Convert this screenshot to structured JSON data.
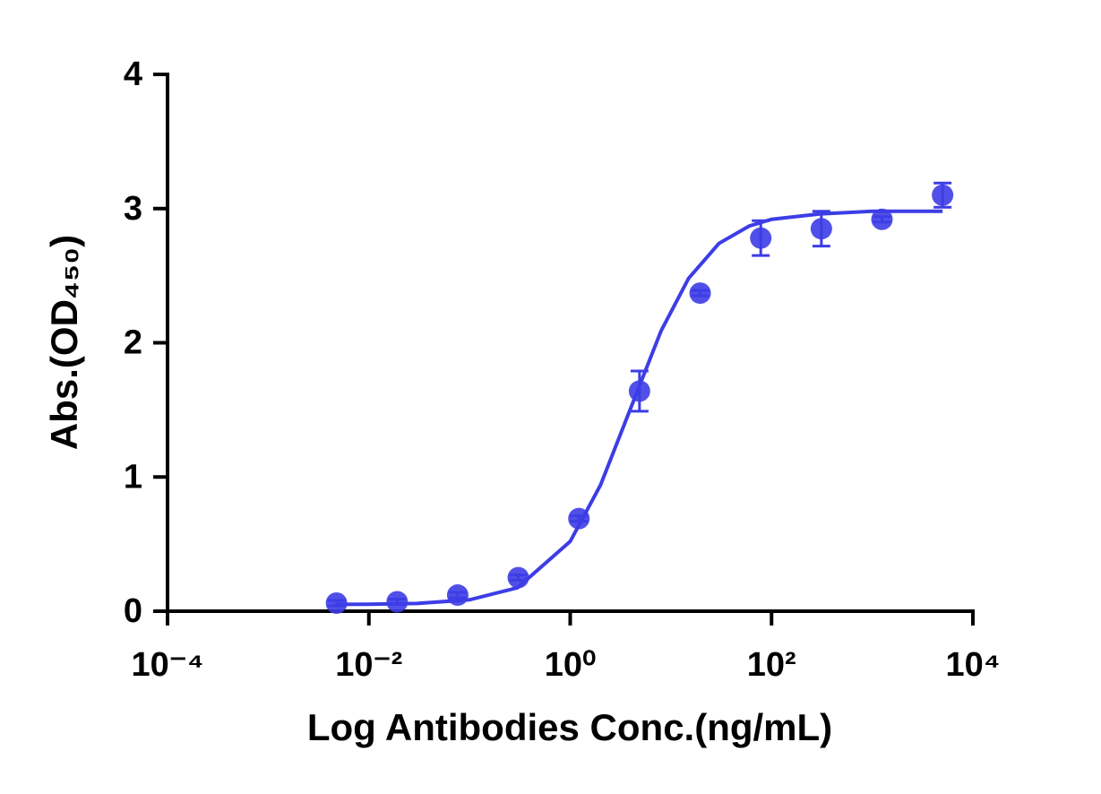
{
  "chart_data": {
    "type": "scatter",
    "x_label": "Log Antibodies Conc.(ng/mL)",
    "y_label": "Abs.(OD₄₅₀)",
    "log_x": true,
    "xlim": [
      0.0001,
      10000
    ],
    "xticks": [
      {
        "value": 0.0001,
        "label": "10⁻⁴"
      },
      {
        "value": 0.01,
        "label": "10⁻²"
      },
      {
        "value": 1,
        "label": "10⁰"
      },
      {
        "value": 100,
        "label": "10²"
      },
      {
        "value": 10000,
        "label": "10⁴"
      }
    ],
    "ylim": [
      0,
      4
    ],
    "yticks": [
      0,
      1,
      2,
      3,
      4
    ],
    "series": [
      {
        "color": "#3d3de6",
        "x": [
          0.00477,
          0.0191,
          0.0763,
          0.305,
          1.22,
          4.88,
          19.53,
          78.125,
          312.5,
          1250,
          5000
        ],
        "values": [
          0.06,
          0.07,
          0.12,
          0.25,
          0.69,
          1.64,
          2.37,
          2.78,
          2.85,
          2.92,
          3.1
        ],
        "errors": [
          0.02,
          0.02,
          0.02,
          0.02,
          0.02,
          0.15,
          0.02,
          0.13,
          0.13,
          0.02,
          0.09
        ]
      },
      {
        "color": "#3d3de6",
        "line": true,
        "x": [
          0.00477,
          0.01,
          0.03,
          0.1,
          0.3,
          1,
          2,
          4,
          8,
          15,
          30,
          60,
          100,
          300,
          1000,
          5000
        ],
        "values": [
          0.051,
          0.052,
          0.058,
          0.085,
          0.175,
          0.52,
          0.94,
          1.515,
          2.09,
          2.48,
          2.74,
          2.87,
          2.92,
          2.96,
          2.98,
          2.98
        ]
      }
    ]
  }
}
